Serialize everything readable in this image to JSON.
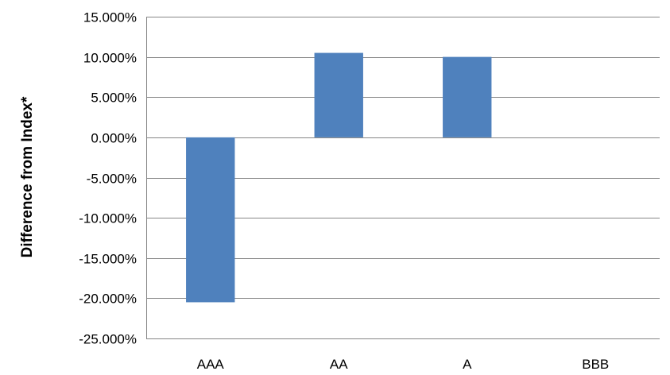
{
  "chart_data": {
    "type": "bar",
    "title": "",
    "xlabel": "",
    "ylabel": "Difference from Index*",
    "categories": [
      "AAA",
      "AA",
      "A",
      "BBB"
    ],
    "values": [
      -20.5,
      10.5,
      10.0,
      0.0
    ],
    "ylim": [
      -25,
      15
    ],
    "yticks": [
      15,
      10,
      5,
      0,
      -5,
      -10,
      -15,
      -20,
      -25
    ],
    "ytick_labels": [
      "15.000%",
      "10.000%",
      "5.000%",
      "0.000%",
      "-5.000%",
      "-10.000%",
      "-15.000%",
      "-20.000%",
      "-25.000%"
    ],
    "grid": true,
    "legend": "none",
    "bar_color": "#4F81BD",
    "gridline_color": "#868686"
  }
}
